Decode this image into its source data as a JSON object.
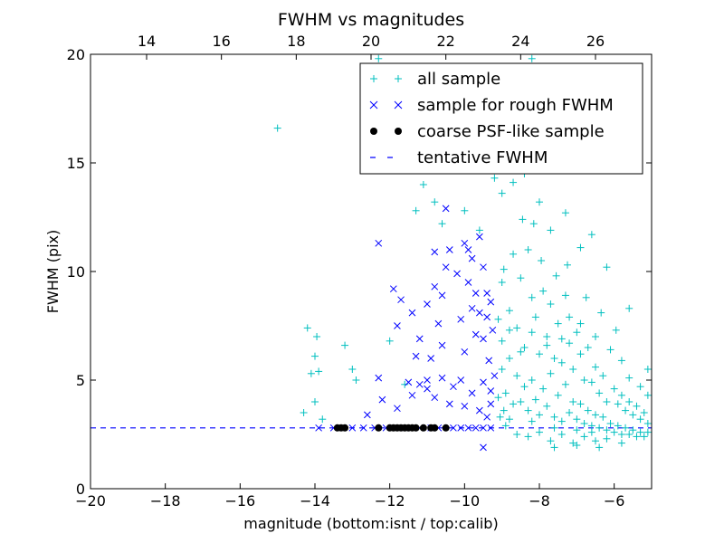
{
  "chart_data": {
    "type": "scatter",
    "title": "FWHM vs magnitudes",
    "xlabel": "magnitude (bottom:isnt / top:calib)",
    "ylabel": "FWHM (pix)",
    "xlim": [
      -20,
      -5
    ],
    "ylim": [
      0,
      20
    ],
    "top_xlim": [
      12.5,
      27.5
    ],
    "x_ticks": [
      {
        "value": -20,
        "label": "−20"
      },
      {
        "value": -18,
        "label": "−18"
      },
      {
        "value": -16,
        "label": "−16"
      },
      {
        "value": -14,
        "label": "−14"
      },
      {
        "value": -12,
        "label": "−12"
      },
      {
        "value": -10,
        "label": "−10"
      },
      {
        "value": -8,
        "label": "−8"
      },
      {
        "value": -6,
        "label": "−6"
      }
    ],
    "top_x_ticks": [
      {
        "value": 14,
        "label": "14"
      },
      {
        "value": 16,
        "label": "16"
      },
      {
        "value": 18,
        "label": "18"
      },
      {
        "value": 20,
        "label": "20"
      },
      {
        "value": 22,
        "label": "22"
      },
      {
        "value": 24,
        "label": "24"
      },
      {
        "value": 26,
        "label": "26"
      }
    ],
    "y_ticks": [
      {
        "value": 0,
        "label": "0"
      },
      {
        "value": 5,
        "label": "5"
      },
      {
        "value": 10,
        "label": "10"
      },
      {
        "value": 15,
        "label": "15"
      },
      {
        "value": 20,
        "label": "20"
      }
    ],
    "grid": false,
    "legend_position": "upper-right",
    "colors": {
      "all": "#00bfbf",
      "rough": "#0000ff",
      "psf": "#000000",
      "fwhm_line": "#0000ff"
    },
    "series": [
      {
        "name": "all sample",
        "marker": "plus",
        "points": [
          [
            -15.0,
            16.6
          ],
          [
            -14.2,
            7.4
          ],
          [
            -14.0,
            6.1
          ],
          [
            -13.9,
            5.4
          ],
          [
            -13.95,
            7.0
          ],
          [
            -14.1,
            5.3
          ],
          [
            -14.0,
            4.0
          ],
          [
            -14.3,
            3.5
          ],
          [
            -13.8,
            3.2
          ],
          [
            -13.2,
            6.6
          ],
          [
            -13.0,
            5.5
          ],
          [
            -12.9,
            5.0
          ],
          [
            -12.3,
            19.8
          ],
          [
            -12.0,
            6.8
          ],
          [
            -11.6,
            4.8
          ],
          [
            -11.3,
            12.8
          ],
          [
            -11.1,
            14.0
          ],
          [
            -10.8,
            13.2
          ],
          [
            -10.6,
            12.2
          ],
          [
            -10.0,
            12.8
          ],
          [
            -9.6,
            11.9
          ],
          [
            -9.2,
            14.3
          ],
          [
            -9.0,
            13.6
          ],
          [
            -8.7,
            14.1
          ],
          [
            -8.4,
            14.5
          ],
          [
            -8.2,
            19.8
          ],
          [
            -8.0,
            13.2
          ],
          [
            -7.7,
            11.9
          ],
          [
            -7.3,
            12.7
          ],
          [
            -6.9,
            11.1
          ],
          [
            -6.6,
            11.7
          ],
          [
            -6.2,
            10.2
          ],
          [
            -5.6,
            8.3
          ],
          [
            -5.1,
            5.5
          ],
          [
            -9.0,
            9.5
          ],
          [
            -8.8,
            8.2
          ],
          [
            -8.7,
            10.8
          ],
          [
            -8.6,
            7.4
          ],
          [
            -8.5,
            9.7
          ],
          [
            -8.4,
            6.5
          ],
          [
            -8.3,
            11.0
          ],
          [
            -8.2,
            8.8
          ],
          [
            -8.1,
            7.9
          ],
          [
            -8.0,
            6.2
          ],
          [
            -7.9,
            9.1
          ],
          [
            -7.8,
            7.0
          ],
          [
            -7.7,
            8.5
          ],
          [
            -7.6,
            6.0
          ],
          [
            -7.5,
            7.6
          ],
          [
            -7.4,
            5.8
          ],
          [
            -7.3,
            8.9
          ],
          [
            -7.2,
            6.7
          ],
          [
            -7.1,
            5.5
          ],
          [
            -7.0,
            7.2
          ],
          [
            -6.9,
            6.2
          ],
          [
            -6.8,
            5.0
          ],
          [
            -6.7,
            6.5
          ],
          [
            -6.6,
            4.9
          ],
          [
            -6.5,
            5.6
          ],
          [
            -6.4,
            4.4
          ],
          [
            -6.3,
            5.2
          ],
          [
            -6.2,
            4.0
          ],
          [
            -6.0,
            4.6
          ],
          [
            -5.9,
            3.9
          ],
          [
            -5.8,
            4.3
          ],
          [
            -5.7,
            3.6
          ],
          [
            -5.6,
            4.0
          ],
          [
            -5.5,
            3.4
          ],
          [
            -5.4,
            3.8
          ],
          [
            -5.3,
            3.2
          ],
          [
            -5.2,
            3.5
          ],
          [
            -5.1,
            3.0
          ],
          [
            -9.0,
            5.5
          ],
          [
            -8.9,
            4.4
          ],
          [
            -8.8,
            6.0
          ],
          [
            -8.7,
            3.9
          ],
          [
            -8.6,
            5.2
          ],
          [
            -8.5,
            4.0
          ],
          [
            -8.4,
            4.7
          ],
          [
            -8.3,
            3.6
          ],
          [
            -8.2,
            5.0
          ],
          [
            -8.1,
            4.1
          ],
          [
            -8.0,
            3.4
          ],
          [
            -7.9,
            4.6
          ],
          [
            -7.8,
            3.8
          ],
          [
            -7.7,
            5.3
          ],
          [
            -7.6,
            3.3
          ],
          [
            -7.5,
            4.3
          ],
          [
            -7.4,
            3.1
          ],
          [
            -7.3,
            4.8
          ],
          [
            -7.2,
            3.5
          ],
          [
            -7.1,
            4.0
          ],
          [
            -7.0,
            3.2
          ],
          [
            -6.9,
            3.9
          ],
          [
            -6.8,
            3.0
          ],
          [
            -6.7,
            3.6
          ],
          [
            -6.6,
            2.9
          ],
          [
            -6.5,
            3.4
          ],
          [
            -6.4,
            2.8
          ],
          [
            -6.3,
            3.3
          ],
          [
            -6.2,
            2.7
          ],
          [
            -6.1,
            3.0
          ],
          [
            -6.0,
            2.6
          ],
          [
            -5.9,
            2.9
          ],
          [
            -5.8,
            2.5
          ],
          [
            -5.7,
            2.8
          ],
          [
            -5.6,
            2.5
          ],
          [
            -5.5,
            2.7
          ],
          [
            -5.4,
            2.4
          ],
          [
            -5.3,
            2.6
          ],
          [
            -5.2,
            2.4
          ],
          [
            -5.1,
            2.6
          ],
          [
            -8.9,
            2.9
          ],
          [
            -8.6,
            2.5
          ],
          [
            -8.3,
            2.4
          ],
          [
            -8.0,
            2.6
          ],
          [
            -7.7,
            2.2
          ],
          [
            -7.4,
            2.5
          ],
          [
            -7.1,
            2.1
          ],
          [
            -6.8,
            2.4
          ],
          [
            -6.5,
            2.2
          ],
          [
            -6.2,
            2.3
          ],
          [
            -7.6,
            1.9
          ],
          [
            -7.0,
            2.0
          ],
          [
            -6.4,
            1.9
          ],
          [
            -5.8,
            2.1
          ],
          [
            -8.8,
            3.2
          ],
          [
            -8.2,
            3.1
          ],
          [
            -7.6,
            2.8
          ],
          [
            -7.0,
            2.7
          ],
          [
            -6.6,
            2.6
          ],
          [
            -9.1,
            7.8
          ],
          [
            -9.0,
            6.8
          ],
          [
            -8.8,
            7.3
          ],
          [
            -8.5,
            6.3
          ],
          [
            -8.2,
            7.2
          ],
          [
            -7.8,
            6.6
          ],
          [
            -7.4,
            6.9
          ],
          [
            -7.2,
            7.9
          ],
          [
            -6.9,
            7.6
          ],
          [
            -6.5,
            7.0
          ],
          [
            -6.1,
            6.4
          ],
          [
            -5.8,
            5.9
          ],
          [
            -5.6,
            5.1
          ],
          [
            -5.3,
            4.7
          ],
          [
            -5.1,
            4.3
          ],
          [
            -8.95,
            10.1
          ],
          [
            -8.45,
            12.4
          ],
          [
            -8.15,
            12.2
          ],
          [
            -7.95,
            10.5
          ],
          [
            -7.55,
            9.8
          ],
          [
            -7.25,
            10.3
          ],
          [
            -6.75,
            8.8
          ],
          [
            -6.35,
            8.1
          ],
          [
            -5.95,
            7.3
          ],
          [
            -9.1,
            4.2
          ],
          [
            -9.05,
            3.3
          ],
          [
            -8.95,
            3.6
          ]
        ]
      },
      {
        "name": "sample for rough FWHM",
        "marker": "x",
        "points": [
          [
            -12.3,
            11.3
          ],
          [
            -11.9,
            9.2
          ],
          [
            -11.8,
            7.5
          ],
          [
            -11.7,
            8.7
          ],
          [
            -11.4,
            8.1
          ],
          [
            -11.3,
            6.1
          ],
          [
            -11.2,
            6.9
          ],
          [
            -11.0,
            8.5
          ],
          [
            -11.0,
            5.0
          ],
          [
            -10.9,
            6.0
          ],
          [
            -10.8,
            9.3
          ],
          [
            -10.8,
            10.9
          ],
          [
            -10.7,
            7.6
          ],
          [
            -10.6,
            8.9
          ],
          [
            -10.6,
            6.6
          ],
          [
            -10.5,
            10.2
          ],
          [
            -10.5,
            12.9
          ],
          [
            -10.4,
            11.0
          ],
          [
            -10.2,
            9.9
          ],
          [
            -10.1,
            7.8
          ],
          [
            -10.0,
            11.3
          ],
          [
            -10.0,
            6.3
          ],
          [
            -9.9,
            9.5
          ],
          [
            -9.9,
            11.0
          ],
          [
            -9.8,
            8.3
          ],
          [
            -9.8,
            10.6
          ],
          [
            -9.7,
            7.1
          ],
          [
            -9.7,
            9.0
          ],
          [
            -9.6,
            11.6
          ],
          [
            -9.6,
            8.1
          ],
          [
            -9.5,
            10.2
          ],
          [
            -9.5,
            6.9
          ],
          [
            -9.4,
            9.0
          ],
          [
            -9.4,
            7.9
          ],
          [
            -9.35,
            5.9
          ],
          [
            -9.3,
            8.6
          ],
          [
            -9.3,
            4.5
          ],
          [
            -9.25,
            7.3
          ],
          [
            -9.2,
            5.2
          ],
          [
            -12.3,
            5.1
          ],
          [
            -12.2,
            4.1
          ],
          [
            -11.8,
            3.7
          ],
          [
            -11.5,
            4.9
          ],
          [
            -11.4,
            4.3
          ],
          [
            -11.2,
            4.8
          ],
          [
            -11.0,
            4.6
          ],
          [
            -10.8,
            4.2
          ],
          [
            -10.6,
            5.1
          ],
          [
            -10.4,
            3.9
          ],
          [
            -10.3,
            4.7
          ],
          [
            -10.1,
            5.0
          ],
          [
            -10.0,
            3.8
          ],
          [
            -9.8,
            4.4
          ],
          [
            -9.6,
            3.6
          ],
          [
            -9.5,
            4.9
          ],
          [
            -9.4,
            3.3
          ],
          [
            -9.3,
            3.9
          ],
          [
            -12.6,
            3.4
          ],
          [
            -13.9,
            2.8
          ],
          [
            -13.5,
            2.8
          ],
          [
            -13.0,
            2.8
          ],
          [
            -12.7,
            2.8
          ],
          [
            -12.4,
            2.8
          ],
          [
            -12.1,
            2.8
          ],
          [
            -11.6,
            2.8
          ],
          [
            -11.2,
            2.8
          ],
          [
            -10.9,
            2.8
          ],
          [
            -10.7,
            2.8
          ],
          [
            -10.3,
            2.8
          ],
          [
            -10.1,
            2.8
          ],
          [
            -9.9,
            2.8
          ],
          [
            -9.7,
            2.8
          ],
          [
            -9.5,
            2.8
          ],
          [
            -9.3,
            2.8
          ],
          [
            -9.5,
            1.9
          ]
        ]
      },
      {
        "name": "coarse PSF-like sample",
        "marker": "dot",
        "points": [
          [
            -13.4,
            2.8
          ],
          [
            -13.3,
            2.8
          ],
          [
            -13.2,
            2.8
          ],
          [
            -12.3,
            2.8
          ],
          [
            -12.0,
            2.8
          ],
          [
            -11.9,
            2.8
          ],
          [
            -11.8,
            2.8
          ],
          [
            -11.7,
            2.8
          ],
          [
            -11.6,
            2.8
          ],
          [
            -11.5,
            2.8
          ],
          [
            -11.4,
            2.8
          ],
          [
            -11.3,
            2.8
          ],
          [
            -11.1,
            2.8
          ],
          [
            -10.9,
            2.8
          ],
          [
            -10.8,
            2.8
          ],
          [
            -10.5,
            2.8
          ]
        ]
      },
      {
        "name": "tentative FWHM",
        "marker": "dashed-line",
        "value": 2.8
      }
    ]
  }
}
